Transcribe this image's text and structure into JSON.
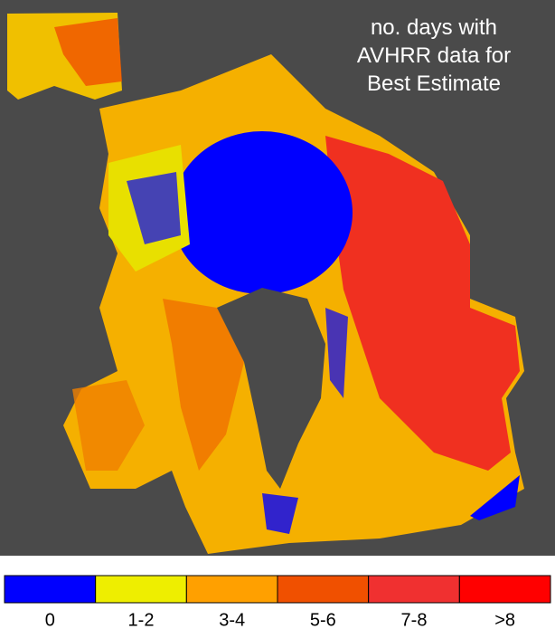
{
  "title": [
    "no. days with",
    "AVHRR data for",
    "Best Estimate"
  ],
  "legend": [
    {
      "label": "0",
      "color": "#0000ff"
    },
    {
      "label": "1-2",
      "color": "#eeee00"
    },
    {
      "label": "3-4",
      "color": "#ffa000"
    },
    {
      "label": "5-6",
      "color": "#f05000"
    },
    {
      "label": "7-8",
      "color": "#f03030"
    },
    {
      "label": ">8",
      "color": "#ff0000"
    }
  ]
}
